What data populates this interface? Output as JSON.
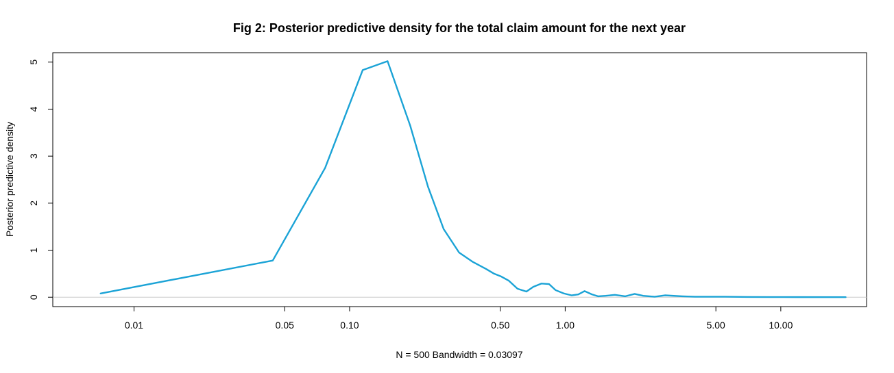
{
  "chart_data": {
    "type": "line",
    "title": "Fig 2: Posterior predictive density for the total claim amount for the next year",
    "xlabel": "N = 500   Bandwidth = 0.03097",
    "ylabel": "Posterior predictive density",
    "x_scale": "log",
    "xlim": [
      0.0042,
      25
    ],
    "ylim": [
      -0.2,
      5.2
    ],
    "x_ticks": [
      {
        "value": 0.01,
        "label": "0.01"
      },
      {
        "value": 0.05,
        "label": "0.05"
      },
      {
        "value": 0.1,
        "label": "0.10"
      },
      {
        "value": 0.5,
        "label": "0.50"
      },
      {
        "value": 1.0,
        "label": "1.00"
      },
      {
        "value": 5.0,
        "label": "5.00"
      },
      {
        "value": 10.0,
        "label": "10.00"
      }
    ],
    "y_ticks": [
      {
        "value": 0,
        "label": "0"
      },
      {
        "value": 1,
        "label": "1"
      },
      {
        "value": 2,
        "label": "2"
      },
      {
        "value": 3,
        "label": "3"
      },
      {
        "value": 4,
        "label": "4"
      },
      {
        "value": 5,
        "label": "5"
      }
    ],
    "baseline": 0,
    "grid": false,
    "legend": "none",
    "series": [
      {
        "color": "#1ba3d6",
        "x": [
          0.007,
          0.044,
          0.077,
          0.115,
          0.15,
          0.191,
          0.231,
          0.273,
          0.322,
          0.373,
          0.43,
          0.468,
          0.505,
          0.548,
          0.601,
          0.661,
          0.711,
          0.775,
          0.841,
          0.903,
          0.985,
          1.07,
          1.15,
          1.23,
          1.33,
          1.42,
          1.54,
          1.7,
          1.9,
          2.1,
          2.3,
          2.6,
          2.9,
          3.5,
          4.0,
          5.5,
          7.0,
          9.0,
          12.0,
          20.0
        ],
        "y": [
          0.08,
          0.78,
          2.75,
          4.83,
          5.02,
          3.65,
          2.35,
          1.45,
          0.95,
          0.75,
          0.6,
          0.5,
          0.44,
          0.35,
          0.18,
          0.12,
          0.22,
          0.29,
          0.28,
          0.15,
          0.08,
          0.04,
          0.06,
          0.13,
          0.06,
          0.02,
          0.03,
          0.05,
          0.02,
          0.07,
          0.03,
          0.01,
          0.04,
          0.02,
          0.01,
          0.01,
          0.005,
          0.003,
          0.002,
          0.001
        ]
      }
    ]
  }
}
